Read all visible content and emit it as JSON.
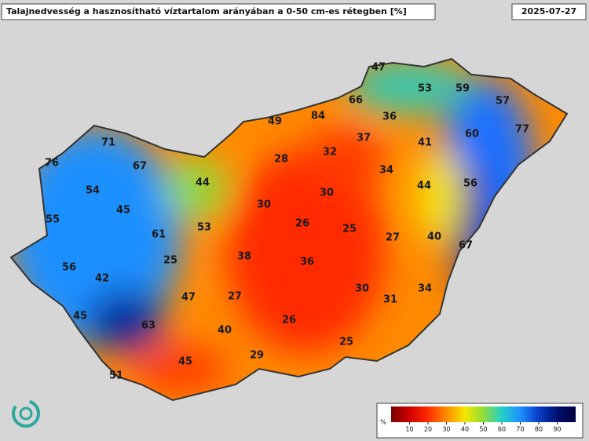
{
  "header": {
    "title": "Talajnedvesség a hasznosítható víztartalom arányában a 0-50 cm-es rétegben [%]",
    "date": "2025-07-27"
  },
  "stations": [
    47,
    53,
    59,
    57,
    66,
    84,
    49,
    36,
    77,
    60,
    71,
    37,
    41,
    32,
    76,
    67,
    28,
    34,
    44,
    44,
    56,
    54,
    30,
    30,
    45,
    55,
    26,
    25,
    53,
    61,
    27,
    40,
    67,
    25,
    38,
    36,
    56,
    42,
    30,
    34,
    47,
    27,
    31,
    45,
    26,
    63,
    40,
    25,
    29,
    45,
    51
  ],
  "colorbar": {
    "unit": "%",
    "ticks": [
      10,
      20,
      30,
      40,
      50,
      60,
      70,
      80,
      90
    ]
  }
}
